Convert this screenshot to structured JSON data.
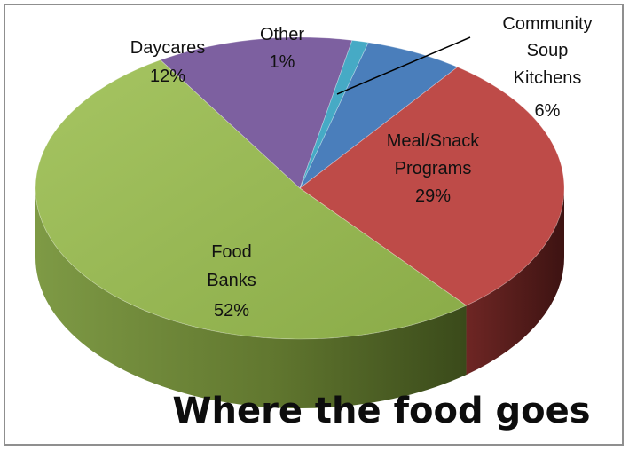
{
  "chart_data": {
    "type": "pie",
    "title": "Where the food goes",
    "slices": [
      {
        "label": "Community Soup Kitchens",
        "value": 6,
        "value_label": "6%",
        "color": "#4a7ebb"
      },
      {
        "label": "Meal/Snack Programs",
        "value": 29,
        "value_label": "29%",
        "color": "#be4b48"
      },
      {
        "label": "Food Banks",
        "value": 52,
        "value_label": "52%",
        "color": "#98b954"
      },
      {
        "label": "Daycares",
        "value": 12,
        "value_label": "12%",
        "color": "#7d60a0"
      },
      {
        "label": "Other",
        "value": 1,
        "value_label": "1%",
        "color": "#46aac5"
      }
    ],
    "legend": "none",
    "style": "3d-pie"
  }
}
